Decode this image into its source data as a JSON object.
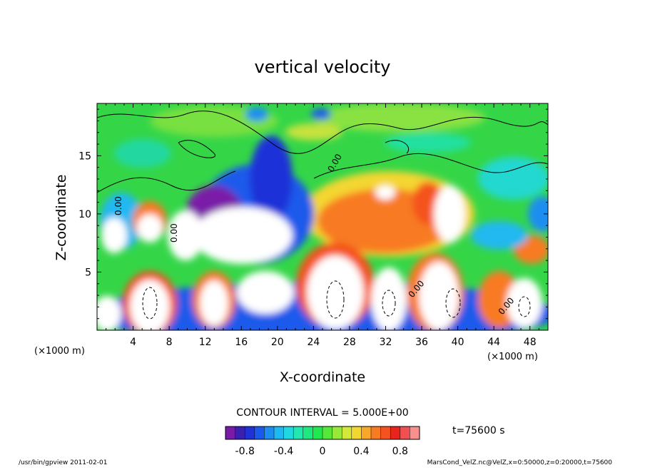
{
  "chart_data": {
    "type": "heatmap",
    "title": "vertical velocity",
    "xlabel": "X-coordinate",
    "ylabel": "Z-coordinate",
    "x_unit": "(×1000 m)",
    "z_unit": "(×1000 m)",
    "xlim": [
      0,
      50
    ],
    "ylim": [
      0,
      19.5
    ],
    "x_ticks": [
      "4",
      "8",
      "12",
      "16",
      "20",
      "24",
      "28",
      "32",
      "36",
      "40",
      "44",
      "48"
    ],
    "y_ticks": [
      "5",
      "10",
      "15"
    ],
    "contour_interval": "CONTOUR INTERVAL = 5.000E+00",
    "contour_labels": [
      "0.00",
      "0.00",
      "0.00",
      "0.00",
      "0.00"
    ],
    "time_label": "t=75600 s",
    "colorbar": {
      "min": -1.0,
      "max": 1.0,
      "tick_labels": [
        "-0.8",
        "-0.4",
        "0",
        "0.4",
        "0.8"
      ],
      "colors": [
        "#7a1aa8",
        "#3b20b0",
        "#1e32d8",
        "#1a5aeb",
        "#1d8ef0",
        "#20b8f0",
        "#22d8e0",
        "#22e8b0",
        "#20e880",
        "#22e850",
        "#56e838",
        "#98e83a",
        "#d2e83a",
        "#f4d630",
        "#f8a828",
        "#f87a22",
        "#f4521e",
        "#e8241c",
        "#f05050",
        "#f89090"
      ]
    }
  },
  "footer": {
    "left": "/usr/bin/gpview   2011-02-01",
    "right": "MarsCond_VelZ.nc@VelZ,x=0:50000,z=0:20000,t=75600"
  }
}
